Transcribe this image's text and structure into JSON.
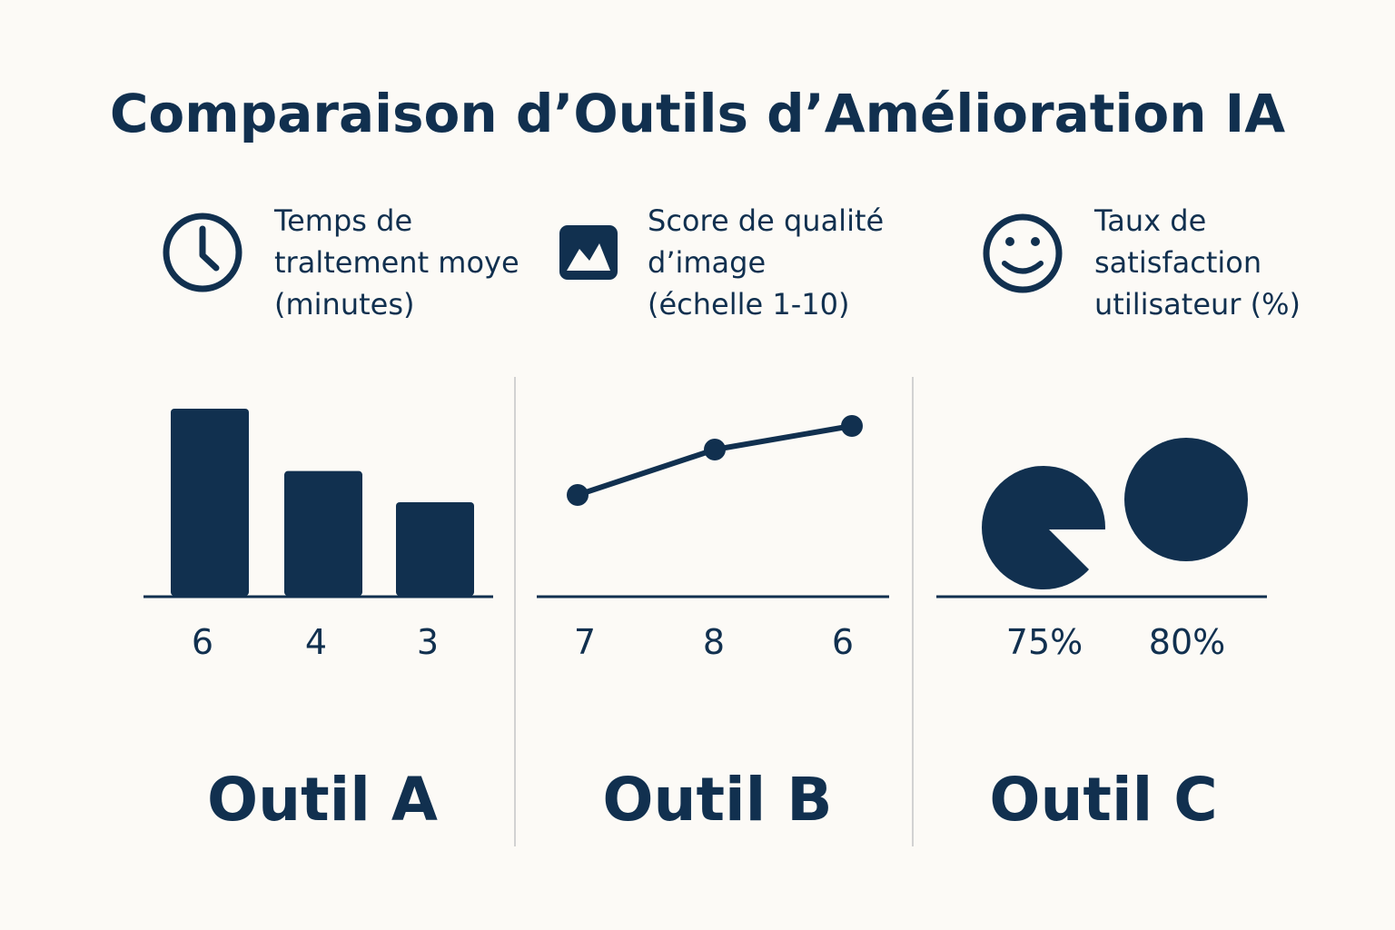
{
  "title": "Comparaison d’Outils d’Amélioration IA",
  "colors": {
    "ink": "#11304f",
    "background": "#fcfaf6",
    "divider": "#d2d2d2"
  },
  "metrics": [
    {
      "icon": "clock-icon",
      "lines": [
        "Temps de",
        "traltement moye",
        "(minutes)"
      ]
    },
    {
      "icon": "image-icon",
      "lines": [
        "Score de qualité",
        "d’image",
        "(échelle 1-10)"
      ]
    },
    {
      "icon": "smiley-icon",
      "lines": [
        "Taux de",
        "satisfaction",
        "utilisateur (%)"
      ]
    }
  ],
  "tools": [
    "Outil A",
    "Outil B",
    "Outil C"
  ],
  "chart_data": [
    {
      "type": "bar",
      "categories": [
        "",
        "",
        ""
      ],
      "values": [
        6,
        4,
        3
      ],
      "value_labels": [
        "6",
        "4",
        "3"
      ],
      "ylim": [
        0,
        7
      ]
    },
    {
      "type": "line",
      "categories": [
        "",
        "",
        ""
      ],
      "values": [
        7,
        8,
        6
      ],
      "value_labels": [
        "7",
        "8",
        "6"
      ]
    },
    {
      "type": "pie",
      "values": [
        75,
        80
      ],
      "value_labels": [
        "75%",
        "80%"
      ]
    }
  ]
}
